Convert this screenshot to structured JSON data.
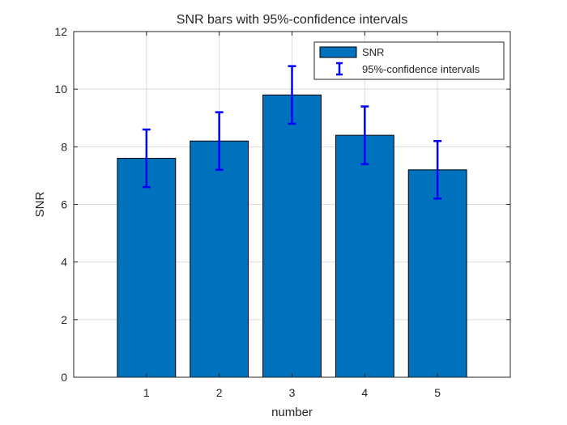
{
  "chart_data": {
    "type": "bar",
    "title": "SNR bars with 95%-confidence intervals",
    "xlabel": "number",
    "ylabel": "SNR",
    "categories": [
      "1",
      "2",
      "3",
      "4",
      "5"
    ],
    "x": [
      1,
      2,
      3,
      4,
      5
    ],
    "xlim": [
      0,
      6
    ],
    "ylim": [
      0,
      12
    ],
    "yticks": [
      0,
      2,
      4,
      6,
      8,
      10,
      12
    ],
    "grid": true,
    "legend_position": "top-right",
    "series": [
      {
        "name": "SNR",
        "values": [
          7.6,
          8.2,
          9.8,
          8.4,
          7.2
        ],
        "color": "#0072BD"
      }
    ],
    "error_bars": {
      "name": "95%-confidence intervals",
      "lower": [
        6.6,
        7.2,
        8.8,
        7.4,
        6.2
      ],
      "upper": [
        8.6,
        9.2,
        10.8,
        9.4,
        8.2
      ],
      "color": "#0000FF"
    }
  }
}
